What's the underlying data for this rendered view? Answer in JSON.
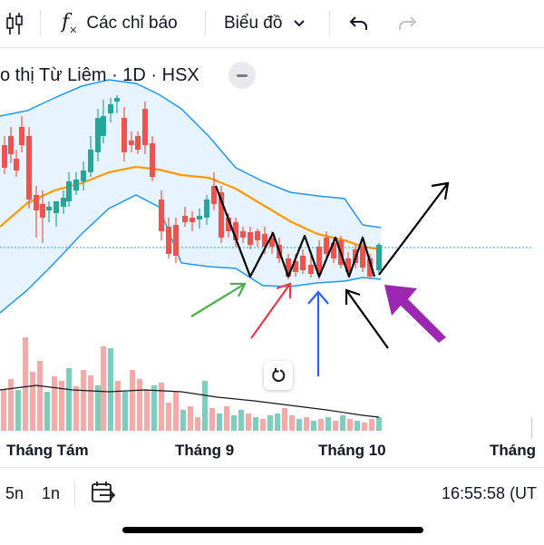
{
  "toolbar": {
    "indicators_label": "Các chỉ báo",
    "chart_type_label": "Biểu đồ"
  },
  "symbol": {
    "title": "o thị Từ Liêm · 1D · HSX"
  },
  "x_axis": {
    "labels": [
      "Tháng Tám",
      "Tháng 9",
      "Tháng 10",
      "Tháng"
    ]
  },
  "bottom_bar": {
    "range_5": "5n",
    "range_1": "1n",
    "time": "16:55:58 (UT"
  },
  "colors": {
    "up": "#26a69a",
    "down": "#ef5350",
    "volume_up": "#7fcdbb",
    "volume_down": "#f7a9a8",
    "bb_band": "#2196f3",
    "bb_fill": "#e3f2fd",
    "ma": "#ff9800",
    "green_arrow": "#4caf50",
    "red_arrow": "#f23645",
    "blue_arrow": "#2962ff",
    "purple_arrow": "#9c27b0"
  }
}
